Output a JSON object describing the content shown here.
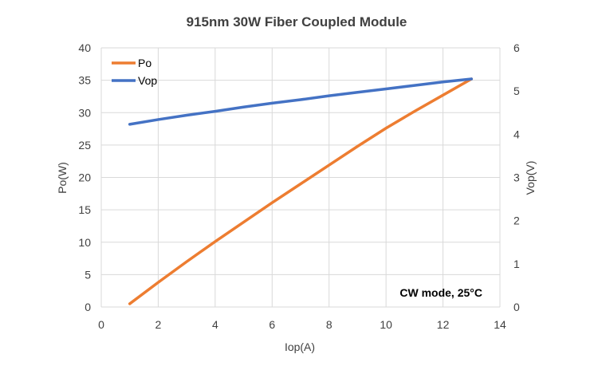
{
  "chart_data": {
    "type": "line",
    "title": "915nm 30W Fiber Coupled Module",
    "xlabel": "Iop(A)",
    "ylabel": "Po(W)",
    "y2label": "Vop(V)",
    "xlim": [
      0,
      14
    ],
    "ylim": [
      0,
      40
    ],
    "y2lim": [
      0,
      6
    ],
    "xticks": [
      "0",
      "2",
      "4",
      "6",
      "8",
      "10",
      "12",
      "14"
    ],
    "yticks": [
      "0",
      "5",
      "10",
      "15",
      "20",
      "25",
      "30",
      "35",
      "40"
    ],
    "y2ticks": [
      "0",
      "1",
      "2",
      "3",
      "4",
      "5",
      "6"
    ],
    "grid": true,
    "legend_position": "top-left",
    "annotation": "CW mode, 25°C",
    "series": [
      {
        "name": "Po",
        "axis": "left",
        "color": "#ED7D31",
        "x": [
          1,
          2,
          3,
          4,
          5,
          6,
          7,
          8,
          9,
          10,
          11,
          12,
          13
        ],
        "y": [
          0.5,
          3.8,
          7.0,
          10.1,
          13.1,
          16.1,
          19.0,
          21.9,
          24.8,
          27.6,
          30.2,
          32.7,
          35.2
        ]
      },
      {
        "name": "Vop",
        "axis": "right",
        "color": "#4472C4",
        "x": [
          1,
          2,
          3,
          4,
          5,
          6,
          7,
          8,
          9,
          10,
          11,
          12,
          13
        ],
        "y": [
          4.23,
          4.34,
          4.44,
          4.53,
          4.63,
          4.72,
          4.8,
          4.89,
          4.97,
          5.05,
          5.13,
          5.21,
          5.28
        ]
      }
    ]
  }
}
